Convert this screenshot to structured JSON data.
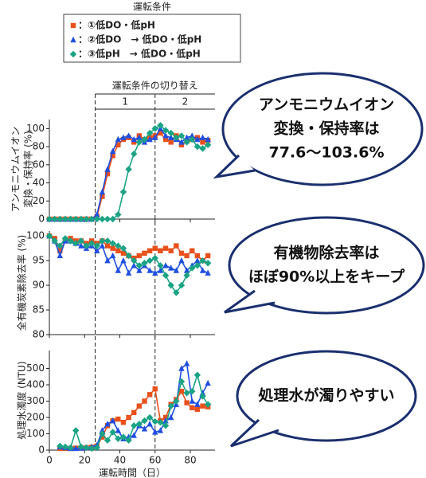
{
  "legend": {
    "title": "運転条件",
    "entries": [
      {
        "label": "：①低DO・低pH",
        "color": "#e8501c",
        "marker": "square"
      },
      {
        "label": "：②低DO　→ 低DO・低pH",
        "color": "#1f4fe0",
        "marker": "triangle"
      },
      {
        "label": "：③低pH　→ 低DO・低pH",
        "color": "#1aa384",
        "marker": "diamond"
      }
    ]
  },
  "switch": {
    "label": "運転条件の切り替え",
    "phases": [
      "1",
      "2"
    ],
    "days": [
      26,
      60
    ]
  },
  "chart_data": [
    {
      "type": "line",
      "ylabel": [
        "アンモニウムイオン",
        "変換・保持率 (%)"
      ],
      "annotation": [
        "アンモニウムイオン",
        "変換・保持率は",
        "77.6～103.6%"
      ],
      "x": [
        0,
        3,
        6,
        9,
        12,
        15,
        18,
        21,
        24,
        27,
        30,
        33,
        36,
        39,
        42,
        45,
        48,
        51,
        54,
        57,
        60,
        63,
        66,
        69,
        72,
        75,
        78,
        81,
        84,
        87,
        90
      ],
      "xlim": [
        0,
        94
      ],
      "ylim": [
        0,
        110
      ],
      "yticks": [
        0,
        20,
        40,
        60,
        80,
        100
      ],
      "series": [
        {
          "color": "#e8501c",
          "marker": "square",
          "values": [
            0,
            0,
            0,
            0,
            0,
            0,
            0,
            0,
            0,
            3,
            25,
            50,
            70,
            82,
            88,
            90,
            85,
            92,
            88,
            90,
            92,
            95,
            88,
            85,
            92,
            82,
            86,
            88,
            90,
            85,
            87
          ]
        },
        {
          "color": "#1f4fe0",
          "marker": "triangle",
          "values": [
            0,
            0,
            0,
            0,
            0,
            0,
            0,
            0,
            0,
            5,
            30,
            55,
            75,
            88,
            90,
            92,
            88,
            90,
            85,
            88,
            90,
            100,
            92,
            90,
            88,
            85,
            90,
            92,
            88,
            90,
            88
          ]
        },
        {
          "color": "#1aa384",
          "marker": "diamond",
          "values": [
            0,
            0,
            0,
            0,
            0,
            0,
            0,
            0,
            0,
            0,
            0,
            0,
            0,
            5,
            30,
            55,
            72,
            85,
            88,
            95,
            100,
            103.6,
            98,
            95,
            90,
            92,
            85,
            88,
            80,
            78,
            82
          ]
        }
      ]
    },
    {
      "type": "line",
      "ylabel": [
        "全有機炭素除去率 (%)"
      ],
      "annotation": [
        "有機物除去率は",
        "ほぼ90%以上をキープ"
      ],
      "x": [
        0,
        3,
        6,
        9,
        12,
        15,
        18,
        21,
        24,
        27,
        30,
        33,
        36,
        39,
        42,
        45,
        48,
        51,
        54,
        57,
        60,
        63,
        66,
        69,
        72,
        75,
        78,
        81,
        84,
        87,
        90
      ],
      "xlim": [
        0,
        94
      ],
      "ylim": [
        80,
        101
      ],
      "yticks": [
        80,
        85,
        90,
        95,
        100
      ],
      "series": [
        {
          "color": "#e8501c",
          "marker": "square",
          "values": [
            100,
            99.5,
            97,
            99,
            99.5,
            99,
            99,
            98.5,
            99,
            98.5,
            99,
            98,
            97.5,
            97,
            96.5,
            96,
            95.5,
            96,
            96.5,
            97,
            97.5,
            97,
            97.5,
            97,
            98,
            96.5,
            96,
            97,
            96,
            95,
            96
          ]
        },
        {
          "color": "#1f4fe0",
          "marker": "triangle",
          "values": [
            100,
            99,
            96,
            99,
            99,
            98.5,
            98,
            97.5,
            98,
            97,
            98,
            95,
            96,
            93,
            95,
            92.5,
            94,
            93,
            94,
            93,
            92.5,
            93,
            94,
            93.5,
            93,
            95,
            93,
            94,
            95,
            93,
            92.5
          ]
        },
        {
          "color": "#1aa384",
          "marker": "diamond",
          "values": [
            100,
            99,
            98,
            99.5,
            99,
            98.5,
            99,
            98,
            98.5,
            98,
            99,
            99,
            98.5,
            98,
            97.5,
            96,
            95,
            94,
            94.5,
            95,
            95.5,
            94,
            92,
            90,
            88.5,
            90,
            92,
            93.5,
            94,
            95,
            94.5
          ]
        }
      ]
    },
    {
      "type": "line",
      "ylabel": [
        "処理水濁度 (NTU)"
      ],
      "xlabel": "運転時間（日）",
      "annotation": [
        "処理水が濁りやすい"
      ],
      "x": [
        0,
        3,
        6,
        9,
        12,
        15,
        18,
        21,
        24,
        27,
        30,
        33,
        36,
        39,
        42,
        45,
        48,
        51,
        54,
        57,
        60,
        63,
        66,
        69,
        72,
        75,
        78,
        81,
        84,
        87,
        90
      ],
      "xlim": [
        0,
        94
      ],
      "ylim": [
        0,
        610
      ],
      "yticks": [
        0,
        100,
        200,
        300,
        400,
        500
      ],
      "xticks": [
        0,
        20,
        40,
        60,
        80
      ],
      "series": [
        {
          "color": "#e8501c",
          "marker": "square",
          "values": [
            null,
            null,
            10,
            10,
            10,
            12,
            12,
            15,
            18,
            25,
            80,
            150,
            180,
            190,
            170,
            200,
            230,
            270,
            300,
            340,
            375,
            180,
            200,
            280,
            310,
            360,
            290,
            260,
            250,
            270,
            265
          ]
        },
        {
          "color": "#1f4fe0",
          "marker": "triangle",
          "values": [
            null,
            null,
            20,
            15,
            10,
            10,
            12,
            15,
            20,
            30,
            120,
            160,
            180,
            120,
            70,
            80,
            90,
            150,
            130,
            160,
            110,
            120,
            180,
            200,
            280,
            500,
            530,
            300,
            280,
            350,
            410
          ]
        },
        {
          "color": "#1aa384",
          "marker": "diamond",
          "values": [
            null,
            null,
            25,
            20,
            15,
            120,
            20,
            15,
            10,
            15,
            100,
            60,
            110,
            70,
            80,
            60,
            150,
            160,
            180,
            200,
            175,
            170,
            150,
            270,
            300,
            420,
            350,
            360,
            460,
            330,
            280
          ]
        }
      ]
    }
  ]
}
